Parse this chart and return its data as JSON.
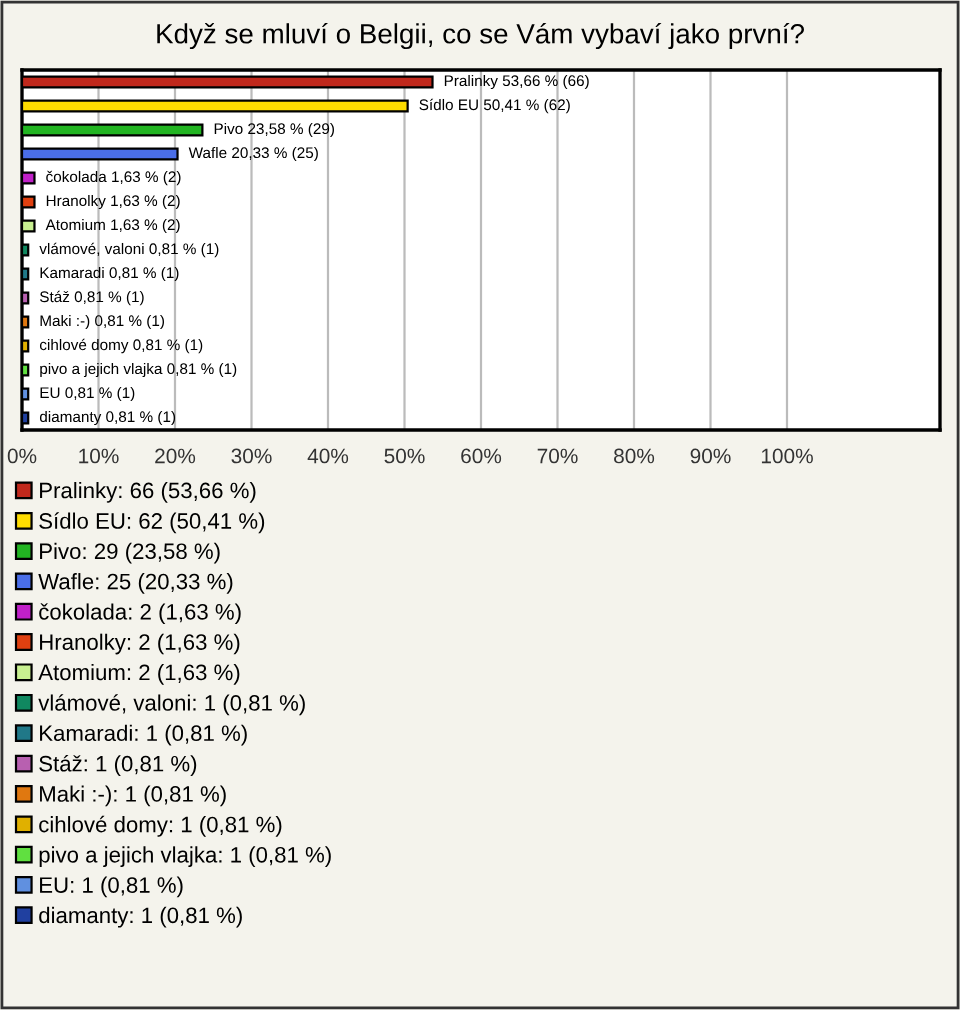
{
  "chart_data": {
    "type": "bar",
    "orientation": "horizontal",
    "title": "Když se mluví o Belgii, co se Vám vybaví jako první?",
    "categories": [
      null,
      null,
      null,
      null,
      null,
      null,
      null,
      null,
      null,
      null,
      null,
      null,
      null,
      null,
      null
    ],
    "series": [
      {
        "name": "Pralinky: 66 (53,66 %)",
        "color": "#c0281c",
        "values": [
          53.66,
          null,
          null,
          null,
          null,
          null,
          null,
          null,
          null,
          null,
          null,
          null,
          null,
          null,
          null
        ],
        "value_labels": [
          "Pralinky 53,66 % (66)",
          null,
          null,
          null,
          null,
          null,
          null,
          null,
          null,
          null,
          null,
          null,
          null,
          null,
          null
        ]
      },
      {
        "name": "Sídlo EU: 62 (50,41 %)",
        "color": "#ffdd00",
        "values": [
          null,
          50.41,
          null,
          null,
          null,
          null,
          null,
          null,
          null,
          null,
          null,
          null,
          null,
          null,
          null
        ],
        "value_labels": [
          null,
          "Sídlo EU 50,41 % (62)",
          null,
          null,
          null,
          null,
          null,
          null,
          null,
          null,
          null,
          null,
          null,
          null,
          null
        ]
      },
      {
        "name": "Pivo: 29 (23,58 %)",
        "color": "#22b522",
        "values": [
          null,
          null,
          23.58,
          null,
          null,
          null,
          null,
          null,
          null,
          null,
          null,
          null,
          null,
          null,
          null
        ],
        "value_labels": [
          null,
          null,
          "Pivo 23,58 % (29)",
          null,
          null,
          null,
          null,
          null,
          null,
          null,
          null,
          null,
          null,
          null,
          null
        ]
      },
      {
        "name": "Wafle: 25 (20,33 %)",
        "color": "#4a6ee8",
        "values": [
          null,
          null,
          null,
          20.33,
          null,
          null,
          null,
          null,
          null,
          null,
          null,
          null,
          null,
          null,
          null
        ],
        "value_labels": [
          null,
          null,
          null,
          "Wafle 20,33 % (25)",
          null,
          null,
          null,
          null,
          null,
          null,
          null,
          null,
          null,
          null,
          null
        ]
      },
      {
        "name": "čokolada: 2 (1,63 %)",
        "color": "#c020c8",
        "values": [
          null,
          null,
          null,
          null,
          1.63,
          null,
          null,
          null,
          null,
          null,
          null,
          null,
          null,
          null,
          null
        ],
        "value_labels": [
          null,
          null,
          null,
          null,
          "čokolada 1,63 % (2)",
          null,
          null,
          null,
          null,
          null,
          null,
          null,
          null,
          null,
          null
        ]
      },
      {
        "name": "Hranolky: 2 (1,63 %)",
        "color": "#e04010",
        "values": [
          null,
          null,
          null,
          null,
          null,
          1.63,
          null,
          null,
          null,
          null,
          null,
          null,
          null,
          null,
          null
        ],
        "value_labels": [
          null,
          null,
          null,
          null,
          null,
          "Hranolky 1,63 % (2)",
          null,
          null,
          null,
          null,
          null,
          null,
          null,
          null,
          null
        ]
      },
      {
        "name": "Atomium: 2 (1,63 %)",
        "color": "#c8f090",
        "values": [
          null,
          null,
          null,
          null,
          null,
          null,
          1.63,
          null,
          null,
          null,
          null,
          null,
          null,
          null,
          null
        ],
        "value_labels": [
          null,
          null,
          null,
          null,
          null,
          null,
          "Atomium 1,63 % (2)",
          null,
          null,
          null,
          null,
          null,
          null,
          null,
          null
        ]
      },
      {
        "name": "vlámové, valoni: 1 (0,81 %)",
        "color": "#108860",
        "values": [
          null,
          null,
          null,
          null,
          null,
          null,
          null,
          0.81,
          null,
          null,
          null,
          null,
          null,
          null,
          null
        ],
        "value_labels": [
          null,
          null,
          null,
          null,
          null,
          null,
          null,
          "vlámové, valoni 0,81 % (1)",
          null,
          null,
          null,
          null,
          null,
          null,
          null
        ]
      },
      {
        "name": "Kamaradi: 1 (0,81 %)",
        "color": "#207888",
        "values": [
          null,
          null,
          null,
          null,
          null,
          null,
          null,
          null,
          0.81,
          null,
          null,
          null,
          null,
          null,
          null
        ],
        "value_labels": [
          null,
          null,
          null,
          null,
          null,
          null,
          null,
          null,
          "Kamaradi 0,81 % (1)",
          null,
          null,
          null,
          null,
          null,
          null
        ]
      },
      {
        "name": "Stáž: 1 (0,81 %)",
        "color": "#b860b0",
        "values": [
          null,
          null,
          null,
          null,
          null,
          null,
          null,
          null,
          null,
          0.81,
          null,
          null,
          null,
          null,
          null
        ],
        "value_labels": [
          null,
          null,
          null,
          null,
          null,
          null,
          null,
          null,
          null,
          "Stáž 0,81 % (1)",
          null,
          null,
          null,
          null,
          null
        ]
      },
      {
        "name": "Maki :-): 1 (0,81 %)",
        "color": "#e07810",
        "values": [
          null,
          null,
          null,
          null,
          null,
          null,
          null,
          null,
          null,
          null,
          0.81,
          null,
          null,
          null,
          null
        ],
        "value_labels": [
          null,
          null,
          null,
          null,
          null,
          null,
          null,
          null,
          null,
          null,
          "Maki :-) 0,81 % (1)",
          null,
          null,
          null,
          null
        ]
      },
      {
        "name": "cihlové domy: 1 (0,81 %)",
        "color": "#e0b000",
        "values": [
          null,
          null,
          null,
          null,
          null,
          null,
          null,
          null,
          null,
          null,
          null,
          0.81,
          null,
          null,
          null
        ],
        "value_labels": [
          null,
          null,
          null,
          null,
          null,
          null,
          null,
          null,
          null,
          null,
          null,
          "cihlové domy 0,81 % (1)",
          null,
          null,
          null
        ]
      },
      {
        "name": "pivo a jejich vlajka: 1 (0,81 %)",
        "color": "#60e040",
        "values": [
          null,
          null,
          null,
          null,
          null,
          null,
          null,
          null,
          null,
          null,
          null,
          null,
          0.81,
          null,
          null
        ],
        "value_labels": [
          null,
          null,
          null,
          null,
          null,
          null,
          null,
          null,
          null,
          null,
          null,
          null,
          "pivo a jejich vlajka 0,81 % (1)",
          null,
          null
        ]
      },
      {
        "name": "EU: 1 (0,81 %)",
        "color": "#6090e0",
        "values": [
          null,
          null,
          null,
          null,
          null,
          null,
          null,
          null,
          null,
          null,
          null,
          null,
          null,
          0.81,
          null
        ],
        "value_labels": [
          null,
          null,
          null,
          null,
          null,
          null,
          null,
          null,
          null,
          null,
          null,
          null,
          null,
          "EU 0,81 % (1)",
          null
        ]
      },
      {
        "name": "diamanty: 1 (0,81 %)",
        "color": "#2040a0",
        "values": [
          null,
          null,
          null,
          null,
          null,
          null,
          null,
          null,
          null,
          null,
          null,
          null,
          null,
          null,
          0.81
        ],
        "value_labels": [
          null,
          null,
          null,
          null,
          null,
          null,
          null,
          null,
          null,
          null,
          null,
          null,
          null,
          null,
          "diamanty 0,81 % (1)"
        ]
      }
    ],
    "xlim": [
      0,
      120
    ],
    "xticks": [
      {
        "value": 0,
        "label": "0%"
      },
      {
        "value": 10,
        "label": "10%"
      },
      {
        "value": 20,
        "label": "20%"
      },
      {
        "value": 30,
        "label": "30%"
      },
      {
        "value": 40,
        "label": "40%"
      },
      {
        "value": 50,
        "label": "50%"
      },
      {
        "value": 60,
        "label": "60%"
      },
      {
        "value": 70,
        "label": "70%"
      },
      {
        "value": 80,
        "label": "80%"
      },
      {
        "value": 90,
        "label": "90%"
      },
      {
        "value": 100,
        "label": "100%"
      }
    ],
    "grid": "x",
    "tick_labels": "x",
    "legend": "bottom"
  }
}
